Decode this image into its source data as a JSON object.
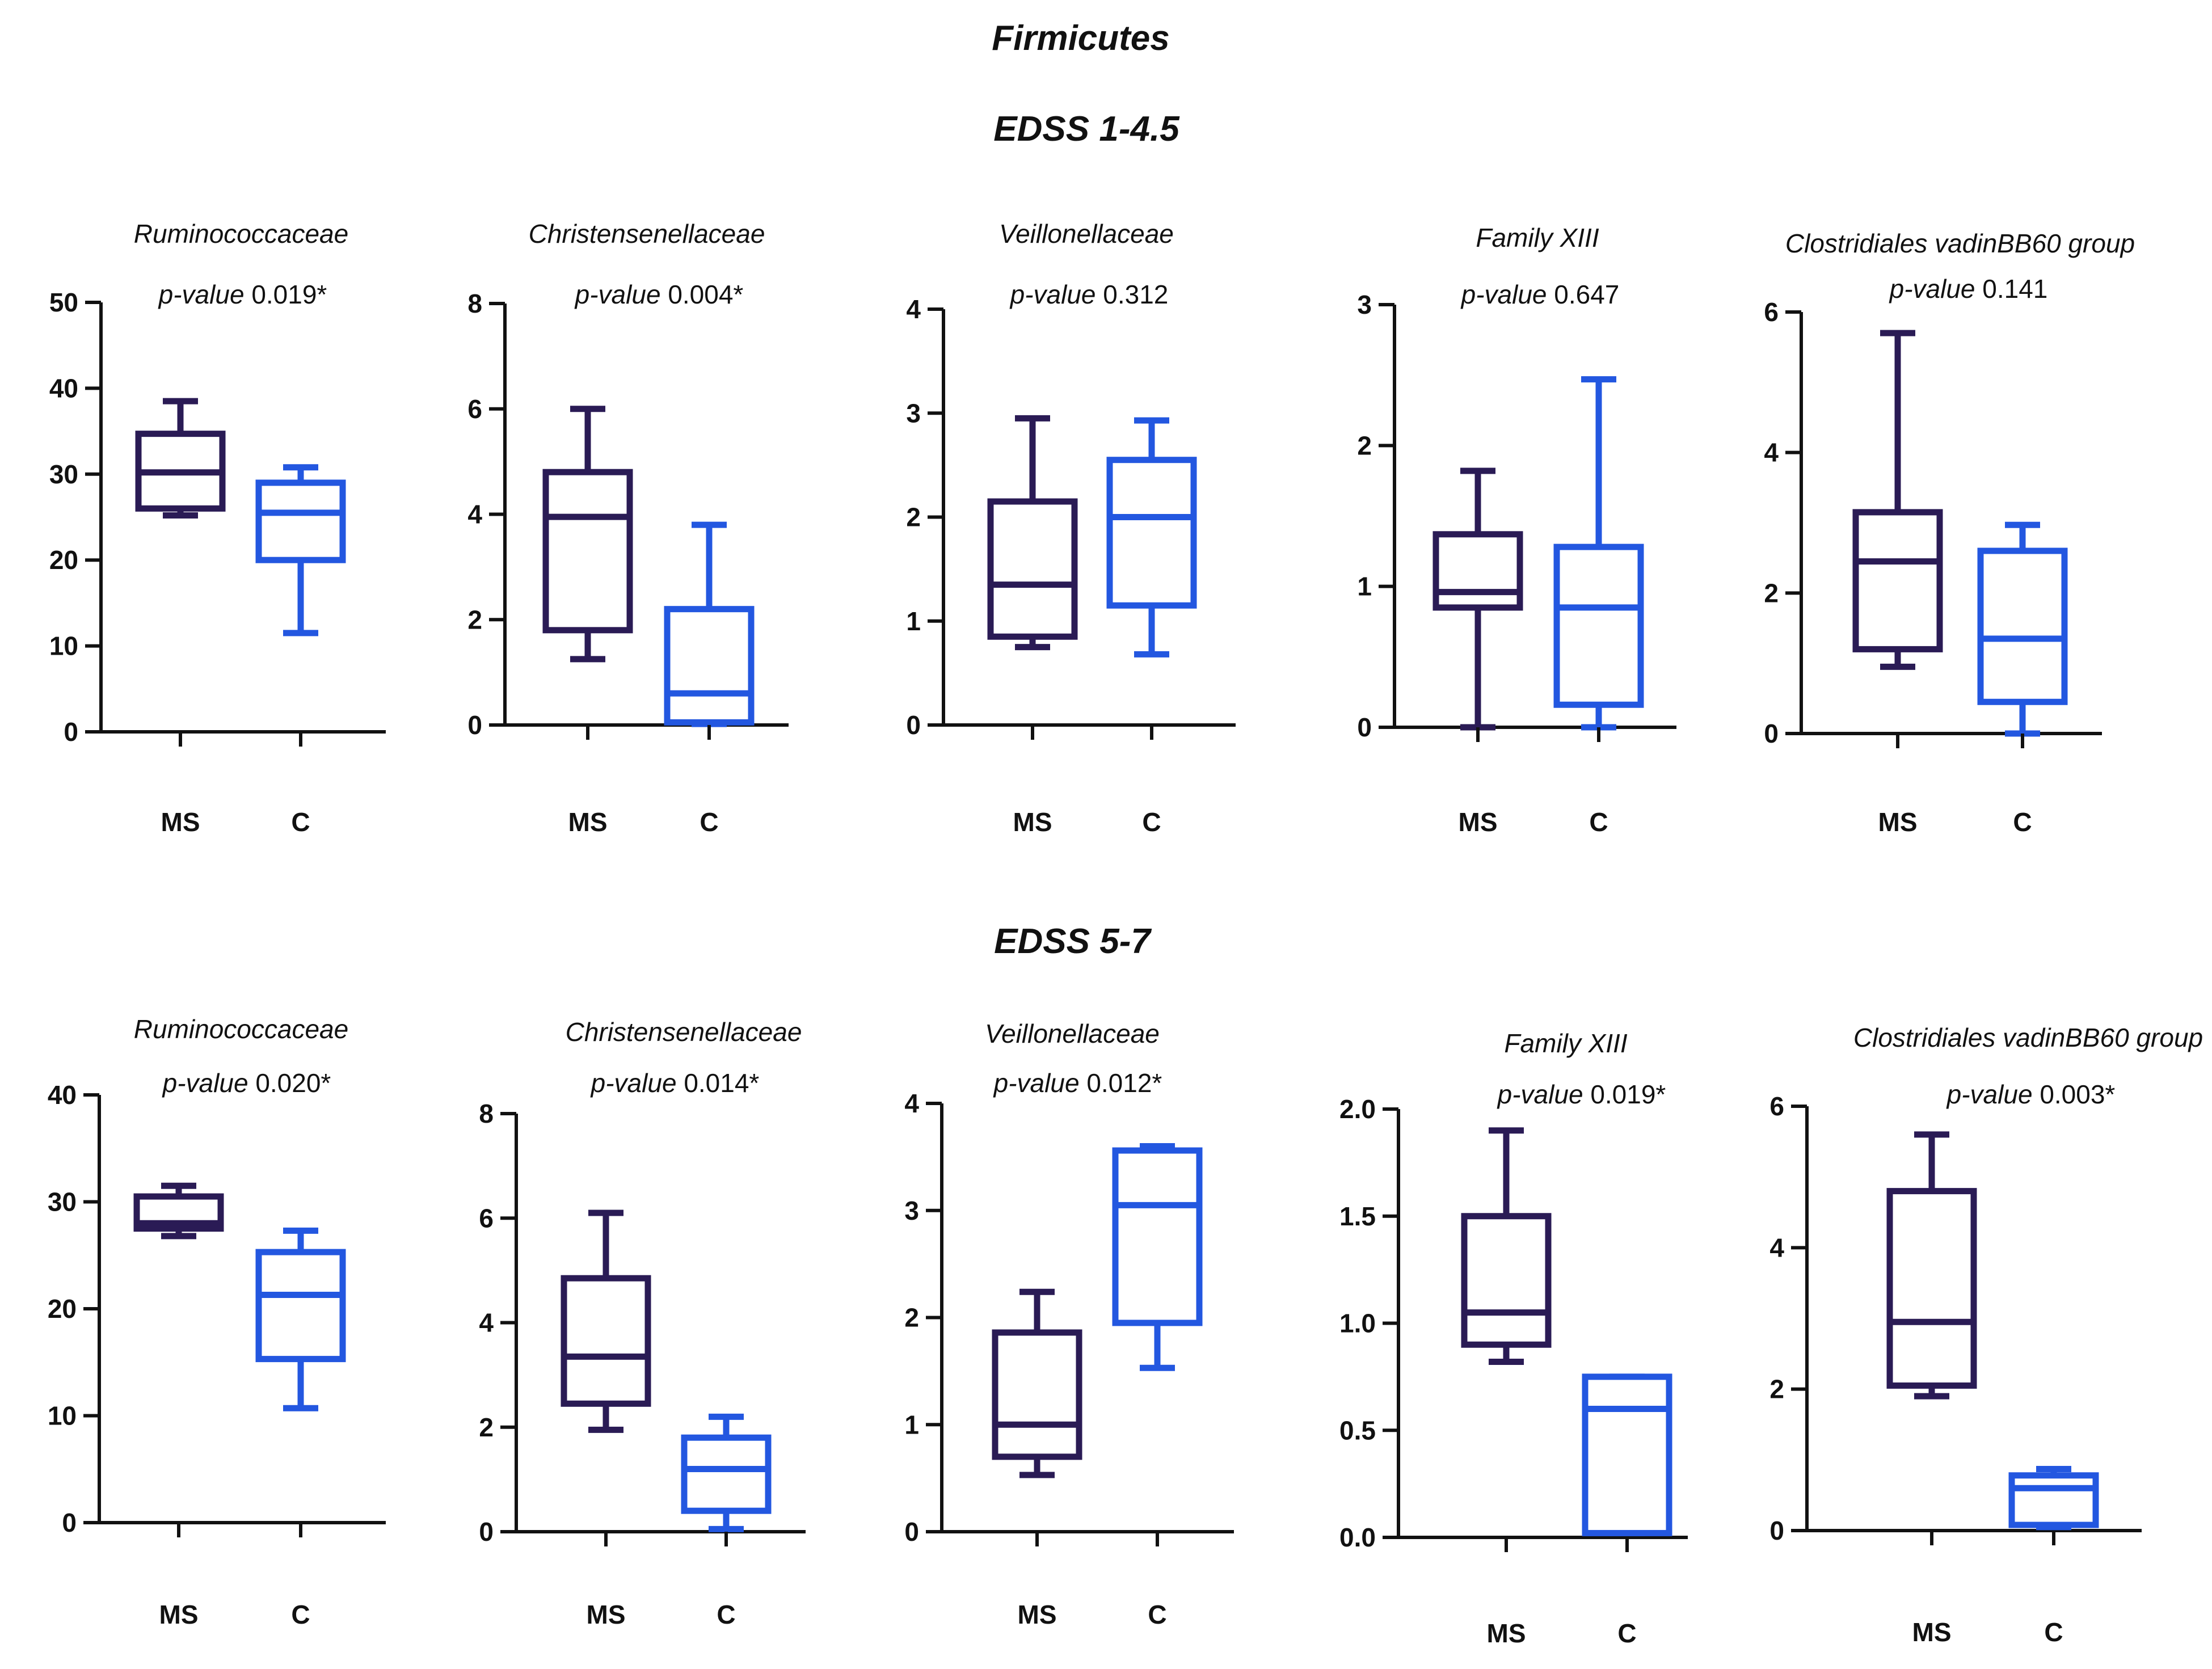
{
  "title": "Firmicutes",
  "rows": [
    {
      "label": "EDSS 1-4.5"
    },
    {
      "label": "EDSS 5-7"
    }
  ],
  "colors": {
    "MS": "#2a1b55",
    "C": "#2357e0",
    "axis": "#111111",
    "text": "#111111"
  },
  "p_value_label": "p-value",
  "chart_data": [
    {
      "type": "box",
      "row": "EDSS 1-4.5",
      "title": "Ruminococcaceae",
      "p_value": "0.019*",
      "categories": [
        "MS",
        "C"
      ],
      "yticks": [
        "0",
        "10",
        "20",
        "30",
        "40",
        "50"
      ],
      "ylim": [
        0,
        50
      ],
      "series": [
        {
          "name": "MS",
          "min": 25.2,
          "q1": 26,
          "median": 30.2,
          "q3": 34.7,
          "max": 38.5
        },
        {
          "name": "C",
          "min": 11.5,
          "q1": 20,
          "median": 25.5,
          "q3": 29,
          "max": 30.8
        }
      ]
    },
    {
      "type": "box",
      "row": "EDSS 1-4.5",
      "title": "Christensenellaceae",
      "p_value": "0.004*",
      "categories": [
        "MS",
        "C"
      ],
      "yticks": [
        "0",
        "2",
        "4",
        "6",
        "8"
      ],
      "ylim": [
        0,
        8
      ],
      "series": [
        {
          "name": "MS",
          "min": 1.25,
          "q1": 1.8,
          "median": 3.95,
          "q3": 4.8,
          "max": 6.0
        },
        {
          "name": "C",
          "min": 0.02,
          "q1": 0.05,
          "median": 0.6,
          "q3": 2.2,
          "max": 3.8
        }
      ]
    },
    {
      "type": "box",
      "row": "EDSS 1-4.5",
      "title": "Veillonellaceae",
      "p_value": "0.312",
      "categories": [
        "MS",
        "C"
      ],
      "yticks": [
        "0",
        "1",
        "2",
        "3",
        "4"
      ],
      "ylim": [
        0,
        4
      ],
      "series": [
        {
          "name": "MS",
          "min": 0.75,
          "q1": 0.85,
          "median": 1.35,
          "q3": 2.15,
          "max": 2.95
        },
        {
          "name": "C",
          "min": 0.68,
          "q1": 1.15,
          "median": 2.0,
          "q3": 2.55,
          "max": 2.93
        }
      ]
    },
    {
      "type": "box",
      "row": "EDSS 1-4.5",
      "title": "Family XIII",
      "p_value": "0.647",
      "categories": [
        "MS",
        "C"
      ],
      "yticks": [
        "0",
        "1",
        "2",
        "3"
      ],
      "ylim": [
        0,
        3
      ],
      "series": [
        {
          "name": "MS",
          "min": 0.0,
          "q1": 0.85,
          "median": 0.96,
          "q3": 1.37,
          "max": 1.82
        },
        {
          "name": "C",
          "min": 0.0,
          "q1": 0.16,
          "median": 0.85,
          "q3": 1.28,
          "max": 2.47
        }
      ]
    },
    {
      "type": "box",
      "row": "EDSS 1-4.5",
      "title": "Clostridiales vadinBB60 group",
      "p_value": "0.141",
      "categories": [
        "MS",
        "C"
      ],
      "yticks": [
        "0",
        "2",
        "4",
        "6"
      ],
      "ylim": [
        0,
        6
      ],
      "series": [
        {
          "name": "MS",
          "min": 0.95,
          "q1": 1.2,
          "median": 2.45,
          "q3": 3.15,
          "max": 5.7
        },
        {
          "name": "C",
          "min": 0.0,
          "q1": 0.45,
          "median": 1.35,
          "q3": 2.6,
          "max": 2.97
        }
      ]
    },
    {
      "type": "box",
      "row": "EDSS 5-7",
      "title": "Ruminococcaceae",
      "p_value": "0.020*",
      "categories": [
        "MS",
        "C"
      ],
      "yticks": [
        "0",
        "10",
        "20",
        "30",
        "40"
      ],
      "ylim": [
        0,
        40
      ],
      "series": [
        {
          "name": "MS",
          "min": 26.8,
          "q1": 27.5,
          "median": 28,
          "q3": 30.5,
          "max": 31.5
        },
        {
          "name": "C",
          "min": 10.7,
          "q1": 15.3,
          "median": 21.3,
          "q3": 25.3,
          "max": 27.3
        }
      ]
    },
    {
      "type": "box",
      "row": "EDSS 5-7",
      "title": "Christensenellaceae",
      "p_value": "0.014*",
      "categories": [
        "MS",
        "C"
      ],
      "yticks": [
        "0",
        "2",
        "4",
        "6",
        "8"
      ],
      "ylim": [
        0,
        8
      ],
      "series": [
        {
          "name": "MS",
          "min": 1.95,
          "q1": 2.45,
          "median": 3.35,
          "q3": 4.85,
          "max": 6.1
        },
        {
          "name": "C",
          "min": 0.05,
          "q1": 0.4,
          "median": 1.2,
          "q3": 1.8,
          "max": 2.2
        }
      ]
    },
    {
      "type": "box",
      "row": "EDSS 5-7",
      "title": "Veillonellaceae",
      "p_value": "0.012*",
      "categories": [
        "MS",
        "C"
      ],
      "yticks": [
        "0",
        "1",
        "2",
        "3",
        "4"
      ],
      "ylim": [
        0,
        4
      ],
      "series": [
        {
          "name": "MS",
          "min": 0.53,
          "q1": 0.7,
          "median": 1.0,
          "q3": 1.86,
          "max": 2.24
        },
        {
          "name": "C",
          "min": 1.53,
          "q1": 1.95,
          "median": 3.05,
          "q3": 3.56,
          "max": 3.6
        }
      ]
    },
    {
      "type": "box",
      "row": "EDSS 5-7",
      "title": "Family XIII",
      "p_value": "0.019*",
      "categories": [
        "MS",
        "C"
      ],
      "yticks": [
        "0.0",
        "0.5",
        "1.0",
        "1.5",
        "2.0"
      ],
      "ylim": [
        0,
        2
      ],
      "series": [
        {
          "name": "MS",
          "min": 0.82,
          "q1": 0.9,
          "median": 1.05,
          "q3": 1.5,
          "max": 1.9
        },
        {
          "name": "C",
          "min": 0.02,
          "q1": 0.02,
          "median": 0.6,
          "q3": 0.75,
          "max": 0.75
        }
      ]
    },
    {
      "type": "box",
      "row": "EDSS 5-7",
      "title": "Clostridiales vadinBB60 group",
      "p_value": "0.003*",
      "categories": [
        "MS",
        "C"
      ],
      "yticks": [
        "0",
        "2",
        "4",
        "6"
      ],
      "ylim": [
        0,
        6
      ],
      "series": [
        {
          "name": "MS",
          "min": 1.9,
          "q1": 2.05,
          "median": 2.95,
          "q3": 4.8,
          "max": 5.6
        },
        {
          "name": "C",
          "min": 0.05,
          "q1": 0.08,
          "median": 0.6,
          "q3": 0.78,
          "max": 0.87
        }
      ]
    }
  ]
}
